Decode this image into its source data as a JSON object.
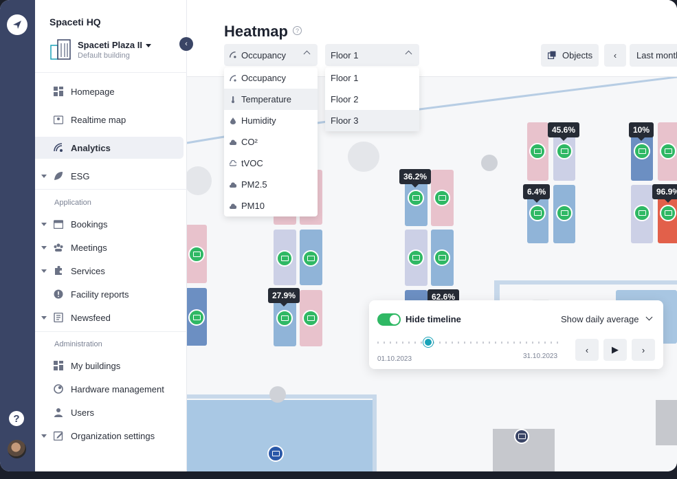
{
  "sidebar": {
    "org_name": "Spaceti HQ",
    "building_name": "Spaceti Plaza II",
    "building_sub": "Default building",
    "items_top": [
      {
        "label": "Homepage",
        "icon": "grid-icon"
      },
      {
        "label": "Realtime map",
        "icon": "map-pin-icon"
      },
      {
        "label": "Analytics",
        "icon": "analytics-icon",
        "active": true
      },
      {
        "label": "ESG",
        "icon": "leaf-icon"
      }
    ],
    "section_application": "Application",
    "items_app": [
      {
        "label": "Bookings",
        "icon": "calendar-icon"
      },
      {
        "label": "Meetings",
        "icon": "meetings-icon"
      },
      {
        "label": "Services",
        "icon": "puzzle-icon"
      },
      {
        "label": "Facility reports",
        "icon": "alert-icon"
      },
      {
        "label": "Newsfeed",
        "icon": "newsfeed-icon"
      }
    ],
    "section_admin": "Administration",
    "items_admin": [
      {
        "label": "My buildings",
        "icon": "grid-icon"
      },
      {
        "label": "Hardware management",
        "icon": "hardware-icon"
      },
      {
        "label": "Users",
        "icon": "user-icon"
      },
      {
        "label": "Organization settings",
        "icon": "edit-icon"
      }
    ]
  },
  "header": {
    "title": "Heatmap",
    "help": "?",
    "metric_select": "Occupancy",
    "floor_select": "Floor 1",
    "objects_button": "Objects",
    "period_label": "Last month"
  },
  "metric_options": [
    "Occupancy",
    "Temperature",
    "Humidity",
    "CO²",
    "tVOC",
    "PM2.5",
    "PM10"
  ],
  "metric_highlighted": "Temperature",
  "floor_options": [
    "Floor 1",
    "Floor 2",
    "Floor 3"
  ],
  "floor_highlighted": "Floor 3",
  "map_labels": [
    "45.6%",
    "10%",
    "36.2%",
    "6.4%",
    "96.9%",
    "27.9%",
    "62.6%"
  ],
  "timeline": {
    "toggle_label": "Hide timeline",
    "toggle_on": true,
    "average_label": "Show daily average",
    "start_date": "01.10.2023",
    "end_date": "31.10.2023",
    "position": 0.28
  },
  "colors": {
    "rail": "#3a4566",
    "seat": "#2fb864",
    "knob": "#1aa3b8",
    "hot": "#e2604a"
  }
}
